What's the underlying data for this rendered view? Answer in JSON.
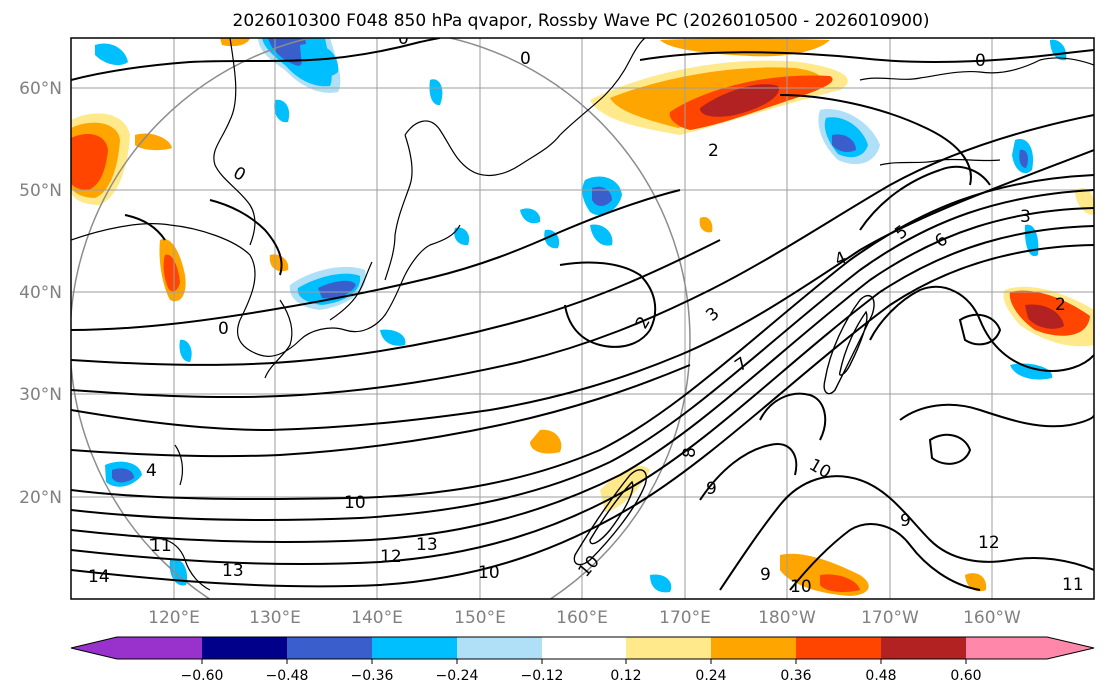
{
  "title": "2026010300 F048 850 hPa qvapor, Rossby Wave PC (2026010500 - 2026010900)",
  "lat_labels": [
    "60°N",
    "50°N",
    "40°N",
    "30°N",
    "20°N"
  ],
  "lon_labels": [
    "120°E",
    "130°E",
    "140°E",
    "150°E",
    "160°E",
    "170°E",
    "180°W",
    "170°W",
    "160°W"
  ],
  "colorbar": {
    "tick_labels": [
      "−0.60",
      "−0.48",
      "−0.36",
      "−0.24",
      "−0.12",
      "0.12",
      "0.24",
      "0.36",
      "0.48",
      "0.60"
    ],
    "colors": [
      "#9932cc",
      "#00008b",
      "#3a5fcd",
      "#00bfff",
      "#b0e0f8",
      "#ffffff",
      "#ffe98a",
      "#ffa500",
      "#ff4500",
      "#b22222",
      "#ff88aa"
    ]
  },
  "contour_labels": [
    "0",
    "0",
    "0",
    "0",
    "0",
    "2",
    "2",
    "2",
    "3",
    "3",
    "4",
    "4",
    "5",
    "6",
    "7",
    "8",
    "9",
    "9",
    "9",
    "10",
    "10",
    "10",
    "10",
    "10",
    "11",
    "11",
    "12",
    "12",
    "13",
    "13",
    "14"
  ]
}
